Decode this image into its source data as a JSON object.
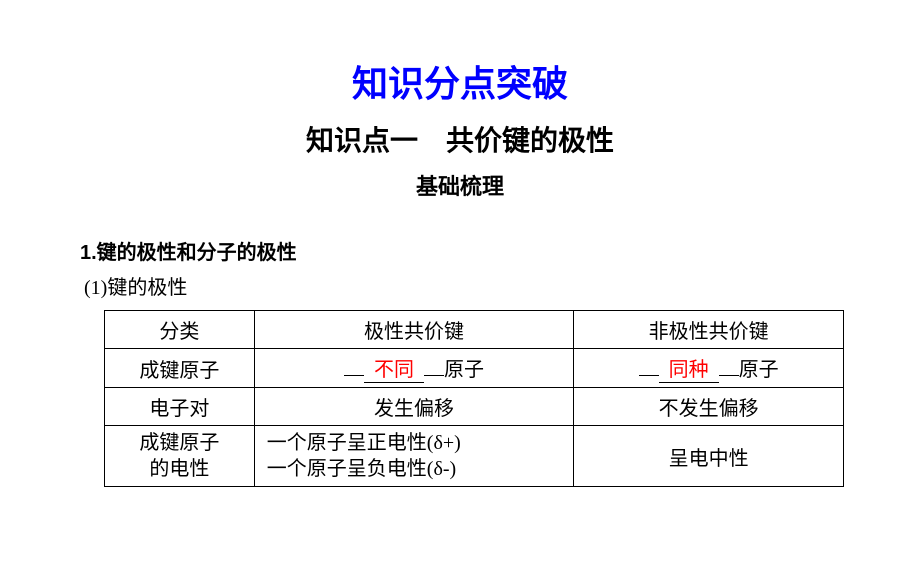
{
  "title_main": "知识分点突破",
  "title_sub": "知识点一　共价键的极性",
  "title_section": "基础梳理",
  "heading_1": "1.键的极性和分子的极性",
  "heading_1_1": "(1)键的极性",
  "table": {
    "row1": {
      "c1": "分类",
      "c2": "极性共价键",
      "c3": "非极性共价键"
    },
    "row2": {
      "c1": "成键原子",
      "c2_fill": "不同",
      "c2_suffix": "原子",
      "c3_fill": "同种",
      "c3_suffix": "原子"
    },
    "row3": {
      "c1": "电子对",
      "c2": "发生偏移",
      "c3": "不发生偏移"
    },
    "row4": {
      "c1_line1": "成键原子",
      "c1_line2": "的电性",
      "c2_line1": "一个原子呈正电性(δ+)",
      "c2_line2": "一个原子呈负电性(δ-)",
      "c3": "呈电中性"
    }
  }
}
